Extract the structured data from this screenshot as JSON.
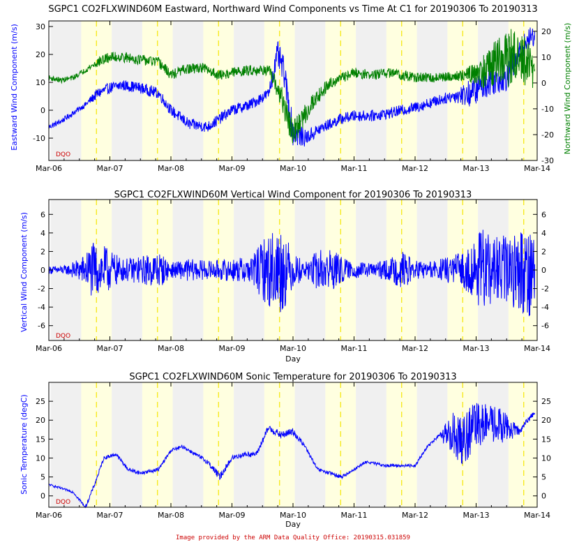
{
  "colors": {
    "eastward": "#0000ff",
    "northward": "#008000",
    "vertical": "#0000ff",
    "temperature": "#0000ff",
    "night": "#f0f0f0",
    "day": "#ffffe0",
    "noon": "#f5e600",
    "flag": "#cc0000"
  },
  "credit": "Image provided by the ARM Data Quality Office: 20190315.031859",
  "chart_data": [
    {
      "type": "line",
      "title": "SGPC1 CO2FLXWIND60M Eastward, Northward Wind Components vs Time At C1 for 20190306 To 20190313",
      "xlabel": "",
      "ylabel": "Eastward Wind Component (m/s)",
      "ylabel_right": "Northward Wind Component (m/s)",
      "flag_label": "DQO",
      "xlim": [
        0,
        8
      ],
      "ylim": [
        -18,
        32
      ],
      "ylim_right": [
        -30,
        24
      ],
      "categories": [
        "Mar-06",
        "Mar-07",
        "Mar-08",
        "Mar-09",
        "Mar-10",
        "Mar-11",
        "Mar-12",
        "Mar-13",
        "Mar-14"
      ],
      "yticks": [
        -10,
        0,
        10,
        20,
        30
      ],
      "yticks_right": [
        -30,
        -20,
        -10,
        0,
        10,
        20
      ],
      "series": [
        {
          "name": "Eastward",
          "axis": "left",
          "x": [
            0,
            0.2,
            0.4,
            0.6,
            0.8,
            1.0,
            1.2,
            1.5,
            1.8,
            2.0,
            2.3,
            2.6,
            3.0,
            3.3,
            3.6,
            3.75,
            3.85,
            4.0,
            4.2,
            4.5,
            4.8,
            5.0,
            5.3,
            5.6,
            6.0,
            6.3,
            6.6,
            6.9,
            7.2,
            7.5,
            7.8,
            7.95
          ],
          "y": [
            -6,
            -4,
            -1,
            2,
            6,
            8,
            9,
            8,
            6,
            0,
            -5,
            -6,
            0,
            2,
            6,
            20,
            14,
            -8,
            -10,
            -6,
            -3,
            -2,
            -2,
            -1,
            1,
            3,
            5,
            6,
            10,
            12,
            24,
            27
          ],
          "noise": [
            1,
            1,
            1,
            1,
            2,
            2,
            2,
            2,
            2,
            2,
            2,
            2,
            2,
            2,
            2,
            5,
            5,
            5,
            3,
            2,
            2,
            2,
            2,
            2,
            2,
            2,
            2,
            5,
            5,
            5,
            4,
            4
          ]
        },
        {
          "name": "Northward",
          "axis": "right",
          "x": [
            0,
            0.2,
            0.4,
            0.6,
            0.8,
            1.0,
            1.2,
            1.5,
            1.8,
            2.0,
            2.2,
            2.5,
            2.8,
            3.0,
            3.3,
            3.6,
            3.8,
            4.0,
            4.3,
            4.6,
            5.0,
            5.3,
            5.6,
            6.0,
            6.4,
            6.8,
            7.0,
            7.2,
            7.5,
            7.8,
            7.95
          ],
          "y": [
            2,
            1,
            2,
            5,
            8,
            10,
            10,
            9,
            8,
            3,
            5,
            6,
            3,
            4,
            5,
            5,
            -5,
            -20,
            -8,
            0,
            4,
            3,
            4,
            2,
            2,
            3,
            4,
            5,
            10,
            8,
            5
          ],
          "noise": [
            1,
            1,
            1,
            1,
            2,
            2,
            2,
            2,
            2,
            2,
            2,
            2,
            2,
            2,
            2,
            2,
            5,
            5,
            4,
            2,
            2,
            2,
            2,
            2,
            2,
            2,
            5,
            8,
            12,
            10,
            8
          ]
        }
      ]
    },
    {
      "type": "line",
      "title": "SGPC1 CO2FLXWIND60M Vertical Wind Component for 20190306 To 20190313",
      "xlabel": "Day",
      "ylabel": "Vertical Wind Component (m/s)",
      "flag_label": "DQO",
      "xlim": [
        0,
        8
      ],
      "ylim": [
        -7.6,
        7.6
      ],
      "categories": [
        "Mar-06",
        "Mar-07",
        "Mar-08",
        "Mar-09",
        "Mar-10",
        "Mar-11",
        "Mar-12",
        "Mar-13",
        "Mar-14"
      ],
      "yticks": [
        -6,
        -4,
        -2,
        0,
        2,
        4,
        6
      ],
      "series": [
        {
          "name": "Vertical",
          "x": [
            0,
            0.3,
            0.55,
            0.7,
            0.95,
            1.2,
            1.5,
            1.8,
            2.0,
            2.3,
            2.6,
            3.0,
            3.3,
            3.6,
            3.8,
            4.0,
            4.2,
            4.4,
            4.6,
            4.9,
            5.2,
            5.5,
            5.8,
            6.0,
            6.3,
            6.6,
            6.9,
            7.1,
            7.3,
            7.6,
            7.95
          ],
          "y": [
            0,
            0,
            0,
            0,
            0,
            0,
            0,
            0,
            0,
            0,
            0,
            0,
            0,
            0,
            0,
            0,
            0,
            0,
            0,
            0,
            0,
            0,
            0,
            0,
            0,
            0,
            0,
            0,
            0,
            0,
            0
          ],
          "noise": [
            0.4,
            0.5,
            1.5,
            3.0,
            2.5,
            1.2,
            1.5,
            2.0,
            0.8,
            1.2,
            1.0,
            1.2,
            1.5,
            4.0,
            5.0,
            2.0,
            0.8,
            2.2,
            2.5,
            1.0,
            0.8,
            1.0,
            2.0,
            1.0,
            1.0,
            1.5,
            2.5,
            4.5,
            3.5,
            4.0,
            5.5
          ]
        }
      ]
    },
    {
      "type": "line",
      "title": "SGPC1 CO2FLXWIND60M Sonic Temperature for 20190306 To 20190313",
      "xlabel": "Day",
      "ylabel": "Sonic Temperature (degC)",
      "flag_label": "DQO",
      "xlim": [
        0,
        8
      ],
      "ylim": [
        -3,
        30
      ],
      "categories": [
        "Mar-06",
        "Mar-07",
        "Mar-08",
        "Mar-09",
        "Mar-10",
        "Mar-11",
        "Mar-12",
        "Mar-13",
        "Mar-14"
      ],
      "yticks": [
        0,
        5,
        10,
        15,
        20,
        25
      ],
      "series": [
        {
          "name": "Sonic Temperature",
          "x": [
            0,
            0.2,
            0.4,
            0.6,
            0.75,
            0.9,
            1.1,
            1.3,
            1.5,
            1.8,
            2.0,
            2.2,
            2.4,
            2.6,
            2.8,
            3.0,
            3.2,
            3.4,
            3.6,
            3.8,
            4.0,
            4.2,
            4.4,
            4.6,
            4.8,
            5.0,
            5.2,
            5.5,
            5.8,
            6.0,
            6.2,
            6.4,
            6.6,
            6.8,
            7.0,
            7.3,
            7.5,
            7.7,
            7.95
          ],
          "y": [
            3,
            2,
            1,
            -3,
            3,
            10,
            11,
            7,
            6,
            7,
            12,
            13,
            11,
            9,
            5,
            10,
            11,
            11,
            18,
            16,
            17,
            13,
            7,
            6,
            5,
            7,
            9,
            8,
            8,
            8,
            13,
            16,
            16,
            15,
            19,
            19,
            18,
            17,
            22
          ],
          "noise": [
            0.3,
            0.3,
            0.3,
            0.5,
            0.5,
            0.5,
            0.5,
            0.5,
            0.5,
            0.5,
            0.5,
            0.5,
            0.5,
            0.7,
            1.0,
            0.7,
            0.7,
            0.7,
            1.0,
            1.0,
            1.0,
            0.5,
            0.5,
            0.5,
            0.5,
            0.4,
            0.4,
            0.4,
            0.4,
            0.4,
            0.4,
            0.4,
            6,
            7,
            6,
            5,
            4,
            1,
            0.7
          ]
        }
      ]
    }
  ]
}
